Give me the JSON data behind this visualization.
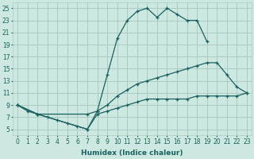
{
  "xlabel": "Humidex (Indice chaleur)",
  "ylabel": "",
  "xlim": [
    -0.5,
    23.5
  ],
  "ylim": [
    4,
    26
  ],
  "yticks": [
    5,
    7,
    9,
    11,
    13,
    15,
    17,
    19,
    21,
    23,
    25
  ],
  "xticks": [
    0,
    1,
    2,
    3,
    4,
    5,
    6,
    7,
    8,
    9,
    10,
    11,
    12,
    13,
    14,
    15,
    16,
    17,
    18,
    19,
    20,
    21,
    22,
    23
  ],
  "bg_color": "#cce8e0",
  "grid_color": "#aaccc4",
  "line_color": "#1a6060",
  "curves": [
    {
      "x": [
        0,
        1,
        2,
        3,
        4,
        5,
        6,
        7,
        8,
        9,
        10,
        11,
        12,
        13,
        14,
        15,
        16,
        17,
        18,
        19
      ],
      "y": [
        9,
        8,
        7.5,
        7,
        6.5,
        6,
        5.5,
        5,
        8,
        14,
        20,
        23,
        24.5,
        25,
        23.5,
        25,
        24,
        23,
        23,
        19.5
      ]
    },
    {
      "x": [
        0,
        2,
        7,
        8,
        9,
        10,
        11,
        12,
        13,
        14,
        15,
        16,
        17,
        18,
        19,
        20,
        21,
        22,
        23
      ],
      "y": [
        9,
        7.5,
        7.5,
        8,
        9,
        10.5,
        11.5,
        12.5,
        13,
        13.5,
        14,
        14.5,
        15,
        15.5,
        16,
        16,
        14,
        12,
        11
      ]
    },
    {
      "x": [
        0,
        2,
        7,
        8,
        9,
        10,
        11,
        12,
        13,
        14,
        15,
        16,
        17,
        18,
        19,
        20,
        21,
        22,
        23
      ],
      "y": [
        9,
        7.5,
        5,
        7.5,
        8,
        8.5,
        9,
        9.5,
        10,
        10,
        10,
        10,
        10,
        10.5,
        10.5,
        10.5,
        10.5,
        10.5,
        11
      ]
    }
  ]
}
